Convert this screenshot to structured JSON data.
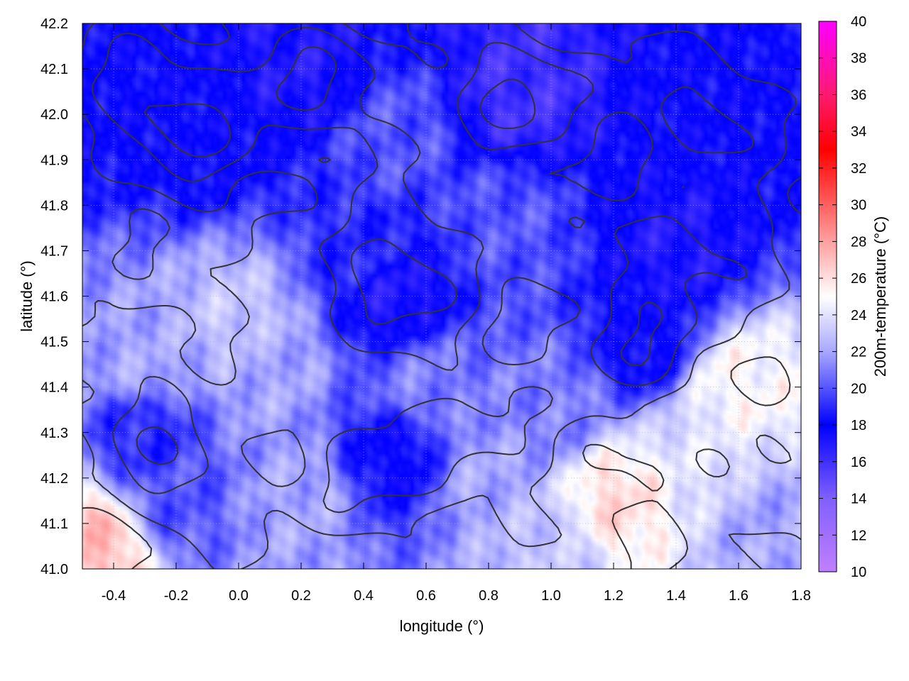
{
  "chart_data": {
    "type": "heatmap",
    "title": "",
    "xlabel": "longitude (°)",
    "ylabel": "latitude (°)",
    "colorbar_label": "200m-temperature (°C)",
    "xlim": [
      -0.5,
      1.8
    ],
    "ylim": [
      41.0,
      42.2
    ],
    "x_ticks": [
      "-0.4",
      "-0.2",
      "0.0",
      "0.2",
      "0.4",
      "0.6",
      "0.8",
      "1.0",
      "1.2",
      "1.4",
      "1.6",
      "1.8"
    ],
    "y_ticks": [
      "41.0",
      "41.1",
      "41.2",
      "41.3",
      "41.4",
      "41.5",
      "41.6",
      "41.7",
      "41.8",
      "41.9",
      "42.0",
      "42.1",
      "42.2"
    ],
    "colorbar_range": [
      10,
      40
    ],
    "colorbar_ticks": [
      "10",
      "12",
      "14",
      "16",
      "18",
      "20",
      "22",
      "24",
      "26",
      "28",
      "30",
      "32",
      "34",
      "36",
      "38",
      "40"
    ],
    "colormap": [
      {
        "value": 10,
        "color": "#c080ff"
      },
      {
        "value": 14,
        "color": "#8060ff"
      },
      {
        "value": 18,
        "color": "#0000ff"
      },
      {
        "value": 22,
        "color": "#a8a8ff"
      },
      {
        "value": 25,
        "color": "#ffffff"
      },
      {
        "value": 29,
        "color": "#ff8080"
      },
      {
        "value": 33,
        "color": "#ff0000"
      },
      {
        "value": 36,
        "color": "#ff1a70"
      },
      {
        "value": 40,
        "color": "#ff00ff"
      }
    ],
    "grid": true,
    "contour_color": "#333333",
    "temperature_field": [
      {
        "lon": -0.35,
        "lat": 42.05,
        "t": 18
      },
      {
        "lon": -0.1,
        "lat": 41.95,
        "t": 18
      },
      {
        "lon": 0.2,
        "lat": 42.1,
        "t": 17
      },
      {
        "lon": 0.5,
        "lat": 41.95,
        "t": 20
      },
      {
        "lon": 0.9,
        "lat": 42.05,
        "t": 16
      },
      {
        "lon": 1.5,
        "lat": 42.0,
        "t": 18
      },
      {
        "lon": 1.4,
        "lat": 41.7,
        "t": 17
      },
      {
        "lon": 1.3,
        "lat": 41.5,
        "t": 18
      },
      {
        "lon": 0.4,
        "lat": 41.7,
        "t": 19
      },
      {
        "lon": 0.5,
        "lat": 41.6,
        "t": 17
      },
      {
        "lon": 0.85,
        "lat": 41.75,
        "t": 20
      },
      {
        "lon": 0.0,
        "lat": 41.55,
        "t": 23
      },
      {
        "lon": -0.3,
        "lat": 41.45,
        "t": 22
      },
      {
        "lon": -0.3,
        "lat": 41.3,
        "t": 19
      },
      {
        "lon": 0.1,
        "lat": 41.45,
        "t": 22
      },
      {
        "lon": 0.6,
        "lat": 41.4,
        "t": 21
      },
      {
        "lon": 0.2,
        "lat": 41.15,
        "t": 22
      },
      {
        "lon": 0.5,
        "lat": 41.25,
        "t": 18
      },
      {
        "lon": 0.8,
        "lat": 41.2,
        "t": 22
      },
      {
        "lon": 1.0,
        "lat": 41.35,
        "t": 21
      },
      {
        "lon": 1.2,
        "lat": 41.15,
        "t": 26
      },
      {
        "lon": 1.5,
        "lat": 41.25,
        "t": 24
      },
      {
        "lon": 1.6,
        "lat": 41.4,
        "t": 25
      },
      {
        "lon": 1.7,
        "lat": 41.1,
        "t": 22
      },
      {
        "lon": -0.45,
        "lat": 41.05,
        "t": 27
      },
      {
        "lon": 1.0,
        "lat": 41.05,
        "t": 23
      },
      {
        "lon": -0.2,
        "lat": 41.15,
        "t": 20
      }
    ]
  }
}
